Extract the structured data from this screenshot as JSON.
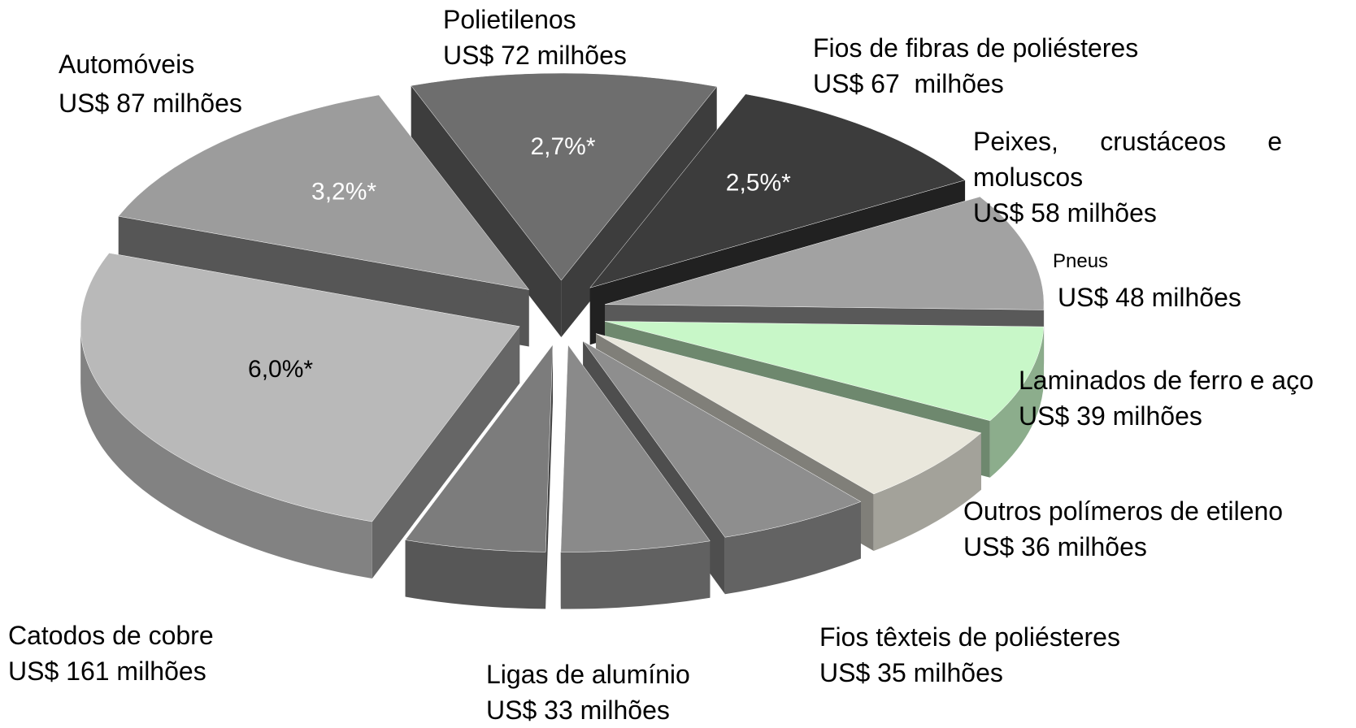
{
  "chart_data": {
    "type": "pie",
    "categories": [
      "Polietilenos",
      "Fios de fibras de poliésteres",
      "Peixes, crustáceos e moluscos",
      "Pneus",
      "Laminados de ferro e aço",
      "Outros polímeros de etileno",
      "Fios têxteis de poliésteres",
      "Ligas de alumínio",
      "Catodos de cobre",
      "Automóveis"
    ],
    "values": [
      72,
      67,
      58,
      48,
      39,
      36,
      35,
      33,
      161,
      87
    ],
    "value_labels": [
      "US$ 72 milhões",
      "US$ 67  milhões",
      "US$ 58 milhões",
      "US$ 48 milhões",
      "US$ 39 milhões",
      "US$ 36 milhões",
      "US$ 35 milhões",
      "US$ 33 milhões",
      "US$ 161 milhões",
      "US$ 87 milhões"
    ],
    "shares": [
      2.7,
      2.5,
      null,
      null,
      null,
      null,
      null,
      null,
      6.0,
      3.2
    ],
    "share_labels": [
      "2,7%*",
      "2,5%*",
      null,
      null,
      null,
      null,
      null,
      null,
      "6,0%*",
      "3,2%*"
    ],
    "colors": [
      "#6e6e6e",
      "#3c3c3c",
      "#a2a2a2",
      "#c8f7c8",
      "#e9e7dc",
      "#8e8e8e",
      "#8a8a8a",
      "#7c7c7c",
      "#b9b9b9",
      "#9c9c9c"
    ],
    "share_label_colors": [
      "#ffffff",
      "#ffffff",
      null,
      null,
      null,
      null,
      null,
      null,
      "#000000",
      "#ffffff"
    ]
  }
}
